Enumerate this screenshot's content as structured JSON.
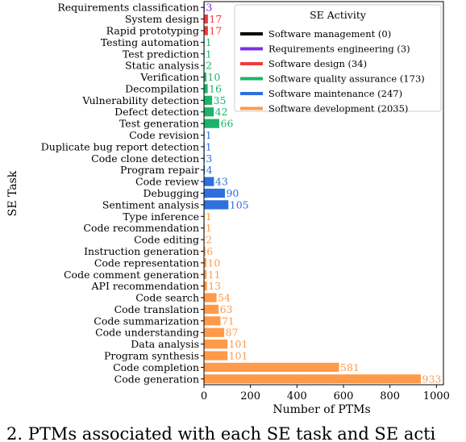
{
  "chart_data": {
    "type": "bar",
    "orientation": "horizontal",
    "xlabel": "Number of PTMs",
    "ylabel": "SE Task",
    "xlim": [
      0,
      1030
    ],
    "xticks": [
      0,
      200,
      400,
      600,
      800,
      1000
    ],
    "grid": false,
    "legend": {
      "title": "SE Activity",
      "placement": "top-right",
      "entries": [
        {
          "label": "Software management (0)",
          "color": "#000000"
        },
        {
          "label": "Requirements engineering (3)",
          "color": "#7b2ee6"
        },
        {
          "label": "Software design (34)",
          "color": "#ef3b3b"
        },
        {
          "label": "Software quality assurance (173)",
          "color": "#1bb46a"
        },
        {
          "label": "Software maintenance (247)",
          "color": "#2f6fde"
        },
        {
          "label": "Software development (2035)",
          "color": "#ff9a4a"
        }
      ]
    },
    "bars": [
      {
        "task": "Requirements classification",
        "value": 3,
        "group": 1
      },
      {
        "task": "System design",
        "value": 17,
        "group": 2
      },
      {
        "task": "Rapid prototyping",
        "value": 17,
        "group": 2
      },
      {
        "task": "Testing automation",
        "value": 1,
        "group": 3
      },
      {
        "task": "Test prediction",
        "value": 1,
        "group": 3
      },
      {
        "task": "Static analysis",
        "value": 2,
        "group": 3
      },
      {
        "task": "Verification",
        "value": 10,
        "group": 3
      },
      {
        "task": "Decompilation",
        "value": 16,
        "group": 3
      },
      {
        "task": "Vulnerability detection",
        "value": 35,
        "group": 3
      },
      {
        "task": "Defect detection",
        "value": 42,
        "group": 3
      },
      {
        "task": "Test generation",
        "value": 66,
        "group": 3
      },
      {
        "task": "Code revision",
        "value": 1,
        "group": 4
      },
      {
        "task": "Duplicate bug report detection",
        "value": 1,
        "group": 4
      },
      {
        "task": "Code clone detection",
        "value": 3,
        "group": 4
      },
      {
        "task": "Program repair",
        "value": 4,
        "group": 4
      },
      {
        "task": "Code review",
        "value": 43,
        "group": 4
      },
      {
        "task": "Debugging",
        "value": 90,
        "group": 4
      },
      {
        "task": "Sentiment analysis",
        "value": 105,
        "group": 4
      },
      {
        "task": "Type inference",
        "value": 1,
        "group": 5
      },
      {
        "task": "Code recommendation",
        "value": 1,
        "group": 5
      },
      {
        "task": "Code editing",
        "value": 2,
        "group": 5
      },
      {
        "task": "Instruction generation",
        "value": 6,
        "group": 5
      },
      {
        "task": "Code representation",
        "value": 10,
        "group": 5
      },
      {
        "task": "Code comment generation",
        "value": 11,
        "group": 5
      },
      {
        "task": "API recommendation",
        "value": 13,
        "group": 5
      },
      {
        "task": "Code search",
        "value": 54,
        "group": 5
      },
      {
        "task": "Code translation",
        "value": 63,
        "group": 5
      },
      {
        "task": "Code summarization",
        "value": 71,
        "group": 5
      },
      {
        "task": "Code understanding",
        "value": 87,
        "group": 5
      },
      {
        "task": "Data analysis",
        "value": 101,
        "group": 5
      },
      {
        "task": "Program synthesis",
        "value": 101,
        "group": 5
      },
      {
        "task": "Code completion",
        "value": 581,
        "group": 5
      },
      {
        "task": "Code generation",
        "value": 933,
        "group": 5
      }
    ]
  },
  "caption": "2. PTMs associated with each SE task and SE acti"
}
